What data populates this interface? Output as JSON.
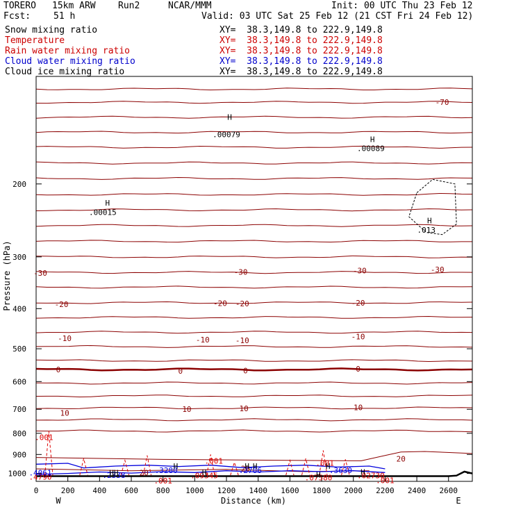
{
  "header": {
    "model": "TORERO",
    "resolution": "15km ARW",
    "run": "Run2",
    "center": "NCAR/MMM",
    "init": "Init: 00 UTC Thu 23 Feb 12",
    "fcst_label": "Fcst:",
    "fcst_value": "51 h",
    "valid": "Valid: 03 UTC Sat 25 Feb 12 (21 CST Fri 24 Feb 12)"
  },
  "fields": [
    {
      "name": "Snow mixing ratio",
      "xy": "XY=  38.3,149.8 to 222.9,149.8",
      "color": "#000000"
    },
    {
      "name": "Temperature",
      "xy": "XY=  38.3,149.8 to 222.9,149.8",
      "color": "#cc0000"
    },
    {
      "name": "Rain water mixing ratio",
      "xy": "XY=  38.3,149.8 to 222.9,149.8",
      "color": "#cc0000"
    },
    {
      "name": "Cloud water mixing ratio",
      "xy": "XY=  38.3,149.8 to 222.9,149.8",
      "color": "#0000cc"
    },
    {
      "name": "Cloud ice mixing ratio",
      "xy": "XY=  38.3,149.8 to 222.9,149.8",
      "color": "#000000"
    }
  ],
  "chart_data": {
    "type": "cross-section contour",
    "ylabel": "Pressure (hPa)",
    "xlabel": "Distance (km)",
    "x_ticks": [
      0,
      200,
      400,
      600,
      800,
      1000,
      1200,
      1400,
      1600,
      1800,
      2000,
      2200,
      2400,
      2600
    ],
    "y_ticks": [
      200,
      300,
      400,
      500,
      600,
      700,
      800,
      900,
      1000
    ],
    "xlim": [
      0,
      2750
    ],
    "ylim_top_to_bottom": [
      110,
      1045
    ],
    "y_scale": "log-pressure",
    "left_end_label": "W",
    "right_end_label": "E",
    "temperature_labels": [
      {
        "x": 2560,
        "p": 127,
        "text": "-70"
      },
      {
        "x": 10,
        "p": 328,
        "text": "-30"
      },
      {
        "x": 1290,
        "p": 326,
        "text": "-30"
      },
      {
        "x": 2040,
        "p": 324,
        "text": "-30"
      },
      {
        "x": 2530,
        "p": 322,
        "text": "-30"
      },
      {
        "x": 160,
        "p": 390,
        "text": "-20"
      },
      {
        "x": 1160,
        "p": 388,
        "text": "-20"
      },
      {
        "x": 1300,
        "p": 389,
        "text": "-20"
      },
      {
        "x": 2030,
        "p": 387,
        "text": "-20"
      },
      {
        "x": 180,
        "p": 472,
        "text": "-10"
      },
      {
        "x": 1050,
        "p": 475,
        "text": "-10"
      },
      {
        "x": 1300,
        "p": 477,
        "text": "-10"
      },
      {
        "x": 2030,
        "p": 467,
        "text": "-10"
      },
      {
        "x": 140,
        "p": 561,
        "text": "0"
      },
      {
        "x": 910,
        "p": 565,
        "text": "0"
      },
      {
        "x": 1320,
        "p": 564,
        "text": "0"
      },
      {
        "x": 2030,
        "p": 559,
        "text": "0"
      },
      {
        "x": 180,
        "p": 714,
        "text": "10"
      },
      {
        "x": 950,
        "p": 700,
        "text": "10"
      },
      {
        "x": 1310,
        "p": 696,
        "text": "10"
      },
      {
        "x": 2030,
        "p": 693,
        "text": "10"
      },
      {
        "x": 2300,
        "p": 922,
        "text": "20"
      },
      {
        "x": 1320,
        "p": 973,
        "text": "20"
      },
      {
        "x": 680,
        "p": 995,
        "text": "20"
      }
    ],
    "snow_labels": [
      {
        "x": 1200,
        "p": 152,
        "text": ".00079"
      },
      {
        "x": 2110,
        "p": 164,
        "text": ".00089"
      },
      {
        "x": 420,
        "p": 234,
        "text": ".00015"
      }
    ],
    "ice_labels": [
      {
        "x": 2460,
        "p": 258,
        "text": ".013"
      }
    ],
    "rain_labels": [
      {
        "x": 50,
        "p": 818,
        "text": ".001"
      },
      {
        "x": 1120,
        "p": 932,
        "text": ".001"
      },
      {
        "x": 1820,
        "p": 943,
        "text": ".001"
      },
      {
        "x": 800,
        "p": 1040,
        "text": ".001"
      },
      {
        "x": 2200,
        "p": 1038,
        "text": ".001"
      },
      {
        "x": 1060,
        "p": 1012,
        "text": ".09345"
      },
      {
        "x": 1780,
        "p": 1024,
        "text": ".07580"
      },
      {
        "x": 2110,
        "p": 1012,
        "text": ".02730"
      },
      {
        "x": 0,
        "p": 1020,
        "text": ".4790"
      }
    ],
    "cloud_water_labels": [
      {
        "x": 0,
        "p": 995,
        "text": ".4061"
      },
      {
        "x": 490,
        "p": 1009,
        "text": ".2338"
      },
      {
        "x": 820,
        "p": 983,
        "text": ".3280"
      },
      {
        "x": 1350,
        "p": 982,
        "text": ".2706"
      },
      {
        "x": 1920,
        "p": 983,
        "text": ".3630"
      }
    ],
    "h_marks": [
      {
        "x": 1220,
        "p": 138,
        "text": "H"
      },
      {
        "x": 2120,
        "p": 156,
        "text": "H"
      },
      {
        "x": 450,
        "p": 222,
        "text": "H"
      },
      {
        "x": 2480,
        "p": 245,
        "text": "H"
      },
      {
        "x": 490,
        "p": 995,
        "text": "HH"
      },
      {
        "x": 880,
        "p": 960,
        "text": "H"
      },
      {
        "x": 1380,
        "p": 960,
        "text": "H"
      },
      {
        "x": 1840,
        "p": 960,
        "text": "H"
      },
      {
        "x": 1060,
        "p": 994,
        "text": "H"
      },
      {
        "x": 1330,
        "p": 960,
        "text": "H"
      },
      {
        "x": 1780,
        "p": 1007,
        "text": "H"
      },
      {
        "x": 2060,
        "p": 991,
        "text": "H"
      }
    ]
  },
  "colors": {
    "temperature": "#8b0000",
    "rain": "#dd0000",
    "cloud_water": "#0000dd",
    "snow": "#000000",
    "terrain": "#000000"
  }
}
